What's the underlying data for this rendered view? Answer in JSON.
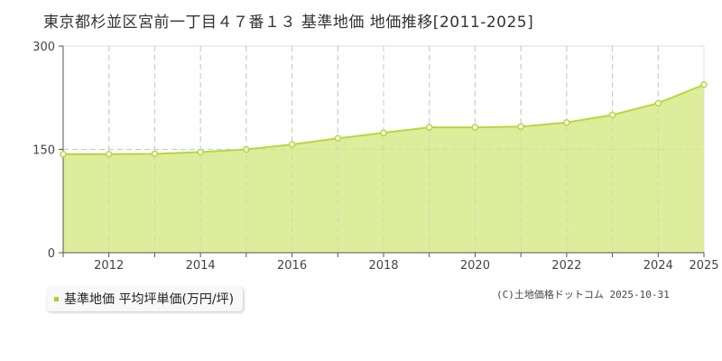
{
  "title": "東京都杉並区宮前一丁目４７番１３ 基準地価 地価推移[2011-2025]",
  "legend": {
    "label": "基準地価 平均坪単価(万円/坪)",
    "color": "#a8d028"
  },
  "copyright": "(C)土地価格ドットコム 2025-10-31",
  "colors": {
    "line": "#b4d93c",
    "fill": "#dcec96",
    "marker_fill": "#ffffff",
    "grid": "#c8c8c8",
    "axis": "#555555"
  },
  "chart_data": {
    "type": "area",
    "title": "東京都杉並区宮前一丁目４７番１３ 基準地価 地価推移[2011-2025]",
    "xlabel": "",
    "ylabel": "",
    "series": [
      {
        "name": "基準地価 平均坪単価(万円/坪)",
        "x": [
          2011,
          2012,
          2013,
          2014,
          2015,
          2016,
          2017,
          2018,
          2019,
          2020,
          2021,
          2022,
          2023,
          2024,
          2025
        ],
        "values": [
          143,
          143,
          143.5,
          146,
          150,
          157,
          166,
          174,
          182,
          182,
          183,
          189,
          200,
          217,
          244
        ]
      }
    ],
    "ylim": [
      0,
      300
    ],
    "xlim": [
      2011,
      2025
    ],
    "y_ticks": [
      "0",
      "150",
      "300"
    ],
    "x_ticks": [
      "2012",
      "2014",
      "2016",
      "2018",
      "2020",
      "2022",
      "2024",
      "2025"
    ],
    "grid": true,
    "legend_position": "bottom-left"
  }
}
